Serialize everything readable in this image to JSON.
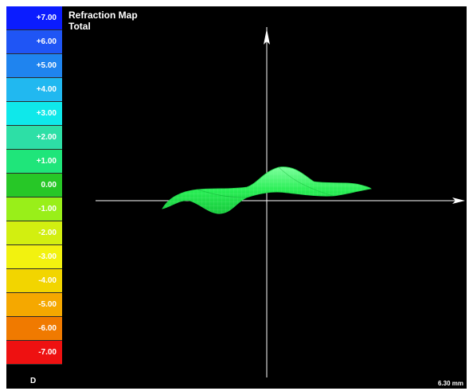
{
  "map": {
    "title": "Refraction Map",
    "subtitle": "Total",
    "unit": "D",
    "scale_label": "6.30 mm"
  },
  "legend": [
    {
      "label": "+7.00",
      "color": "#0b1cff"
    },
    {
      "label": "+6.00",
      "color": "#1f55f5"
    },
    {
      "label": "+5.00",
      "color": "#1f84ef"
    },
    {
      "label": "+4.00",
      "color": "#21b8f0"
    },
    {
      "label": "+3.00",
      "color": "#0fe8ea"
    },
    {
      "label": "+2.00",
      "color": "#2ddfa6"
    },
    {
      "label": "+1.00",
      "color": "#1fe57a"
    },
    {
      "label": "0.00",
      "color": "#27c727"
    },
    {
      "label": "-1.00",
      "color": "#99ef19"
    },
    {
      "label": "-2.00",
      "color": "#d2ef10"
    },
    {
      "label": "-3.00",
      "color": "#f2f20f"
    },
    {
      "label": "-4.00",
      "color": "#f2d500"
    },
    {
      "label": "-5.00",
      "color": "#f5a800"
    },
    {
      "label": "-6.00",
      "color": "#f07a00"
    },
    {
      "label": "-7.00",
      "color": "#ee1111"
    }
  ],
  "colors": {
    "surface": "#22ee55",
    "surface_mesh": "#77ff99",
    "axes": "#ffffff",
    "background": "#000000"
  }
}
